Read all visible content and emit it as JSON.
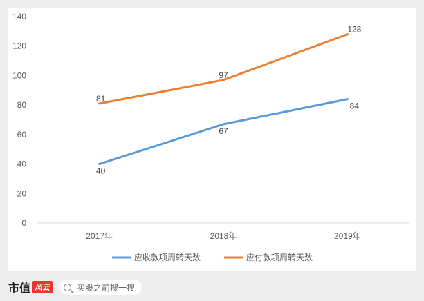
{
  "chart_data": {
    "type": "line",
    "categories": [
      "2017年",
      "2018年",
      "2019年"
    ],
    "y_ticks": [
      0,
      20,
      40,
      60,
      80,
      100,
      120,
      140
    ],
    "ylim": [
      0,
      140
    ],
    "grid": false,
    "legend_position": "bottom",
    "series": [
      {
        "name": "应收款项周转天数",
        "values": [
          40,
          67,
          84
        ],
        "color": "#5b9bd5"
      },
      {
        "name": "应付款项周转天数",
        "values": [
          81,
          97,
          128
        ],
        "color": "#ed7d31"
      }
    ]
  },
  "footer": {
    "brand_text": "市值",
    "brand_badge": "风云",
    "search_icon": "search-icon",
    "search_placeholder": "买股之前搜一搜"
  }
}
